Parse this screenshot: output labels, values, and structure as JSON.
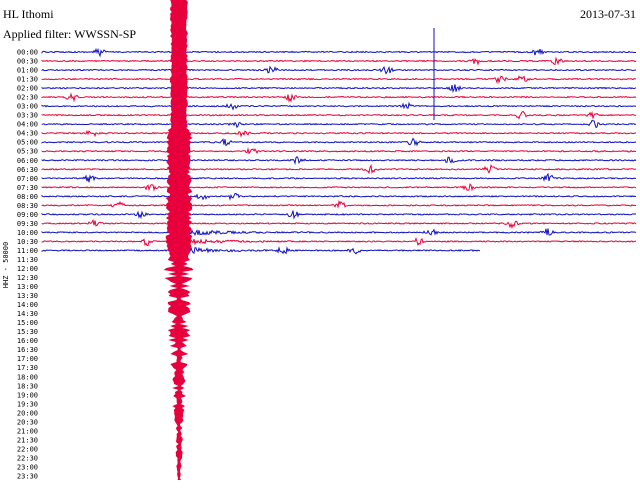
{
  "header": {
    "station": "HL Ithomi",
    "filter": "Applied filter: WWSSN-SP",
    "date": "2013-07-31"
  },
  "axis_label": "HHZ - 50000",
  "time_labels": [
    "00:00",
    "00:30",
    "01:00",
    "01:30",
    "02:00",
    "02:30",
    "03:00",
    "03:30",
    "04:00",
    "04:30",
    "05:00",
    "05:30",
    "06:00",
    "06:30",
    "07:00",
    "07:30",
    "08:00",
    "08:30",
    "09:00",
    "09:30",
    "10:00",
    "10:30",
    "11:00",
    "11:30",
    "12:00",
    "12:30",
    "13:00",
    "13:30",
    "14:00",
    "14:30",
    "15:00",
    "15:30",
    "16:00",
    "16:30",
    "17:00",
    "17:30",
    "18:00",
    "18:30",
    "19:00",
    "19:30",
    "20:00",
    "20:30",
    "21:00",
    "21:30",
    "22:00",
    "22:30",
    "23:00",
    "23:30"
  ]
}
